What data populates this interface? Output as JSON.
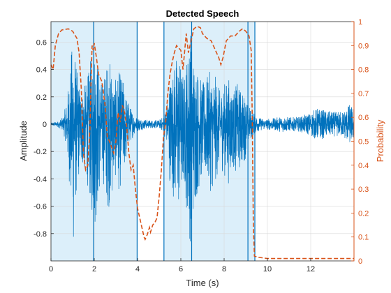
{
  "chart_data": {
    "type": "line",
    "title": "Detected Speech",
    "xlabel": "Time (s)",
    "ylabel_left": "Amplitude",
    "ylabel_right": "Probability",
    "xlim": [
      0,
      14
    ],
    "ylim_left": [
      -1,
      0.75
    ],
    "ylim_right": [
      0,
      1
    ],
    "x_ticks": [
      0,
      2,
      4,
      6,
      8,
      10,
      12
    ],
    "x_tick_labels": [
      "0",
      "2",
      "4",
      "6",
      "8",
      "10",
      "12"
    ],
    "y_left_ticks": [
      0.6,
      0.4,
      0.2,
      0,
      -0.2,
      -0.4,
      -0.6,
      -0.8
    ],
    "y_left_tick_labels": [
      "0.6",
      "0.4",
      "0.2",
      "0",
      "-0.2",
      "-0.4",
      "-0.6",
      "-0.8"
    ],
    "y_right_ticks": [
      0,
      0.1,
      0.2,
      0.3,
      0.4,
      0.5,
      0.6,
      0.7,
      0.8,
      0.9,
      1
    ],
    "y_right_tick_labels": [
      "0",
      "0.1",
      "0.2",
      "0.3",
      "0.4",
      "0.5",
      "0.6",
      "0.7",
      "0.8",
      "0.9",
      "1"
    ],
    "grid": true,
    "colors": {
      "waveform": "#0072BD",
      "probability": "#D95319",
      "region_fill": "#DCEFFA",
      "region_edge": "#0072BD"
    },
    "speech_regions": [
      [
        0,
        3.98
      ],
      [
        5.22,
        9.42
      ]
    ],
    "region_boundaries": [
      1.97,
      3.98,
      5.22,
      6.5,
      9.1,
      9.42
    ],
    "waveform_envelope": [
      [
        0,
        0.01
      ],
      [
        0.3,
        0.02
      ],
      [
        0.55,
        0.05
      ],
      [
        0.7,
        0.15
      ],
      [
        0.85,
        0.35
      ],
      [
        0.95,
        0.55
      ],
      [
        1.05,
        0.75
      ],
      [
        1.15,
        0.45
      ],
      [
        1.3,
        0.3
      ],
      [
        1.45,
        0.25
      ],
      [
        1.6,
        0.3
      ],
      [
        1.75,
        0.4
      ],
      [
        1.9,
        0.55
      ],
      [
        2.05,
        0.6
      ],
      [
        2.2,
        0.45
      ],
      [
        2.35,
        0.3
      ],
      [
        2.5,
        0.4
      ],
      [
        2.65,
        0.5
      ],
      [
        2.8,
        0.45
      ],
      [
        2.95,
        0.3
      ],
      [
        3.1,
        0.4
      ],
      [
        3.3,
        0.35
      ],
      [
        3.5,
        0.2
      ],
      [
        3.7,
        0.12
      ],
      [
        3.9,
        0.06
      ],
      [
        4.2,
        0.04
      ],
      [
        4.6,
        0.03
      ],
      [
        5.0,
        0.03
      ],
      [
        5.2,
        0.06
      ],
      [
        5.35,
        0.15
      ],
      [
        5.5,
        0.35
      ],
      [
        5.7,
        0.45
      ],
      [
        5.85,
        0.55
      ],
      [
        6.0,
        0.45
      ],
      [
        6.15,
        0.35
      ],
      [
        6.3,
        0.55
      ],
      [
        6.45,
        0.72
      ],
      [
        6.6,
        0.5
      ],
      [
        6.8,
        0.4
      ],
      [
        7.0,
        0.3
      ],
      [
        7.2,
        0.35
      ],
      [
        7.4,
        0.4
      ],
      [
        7.6,
        0.35
      ],
      [
        7.8,
        0.25
      ],
      [
        8.0,
        0.3
      ],
      [
        8.2,
        0.35
      ],
      [
        8.4,
        0.25
      ],
      [
        8.6,
        0.3
      ],
      [
        8.8,
        0.25
      ],
      [
        9.0,
        0.2
      ],
      [
        9.2,
        0.12
      ],
      [
        9.4,
        0.08
      ],
      [
        9.6,
        0.05
      ],
      [
        9.9,
        0.04
      ],
      [
        10.3,
        0.045
      ],
      [
        10.7,
        0.06
      ],
      [
        11.1,
        0.05
      ],
      [
        11.5,
        0.055
      ],
      [
        11.9,
        0.08
      ],
      [
        12.3,
        0.12
      ],
      [
        12.7,
        0.1
      ],
      [
        13.1,
        0.09
      ],
      [
        13.5,
        0.1
      ],
      [
        13.8,
        0.15
      ],
      [
        14.0,
        0.12
      ]
    ],
    "probability": [
      [
        0,
        0.82
      ],
      [
        0.1,
        0.8
      ],
      [
        0.2,
        0.9
      ],
      [
        0.35,
        0.95
      ],
      [
        0.5,
        0.965
      ],
      [
        0.8,
        0.97
      ],
      [
        1.0,
        0.96
      ],
      [
        1.2,
        0.93
      ],
      [
        1.3,
        0.87
      ],
      [
        1.4,
        0.72
      ],
      [
        1.5,
        0.45
      ],
      [
        1.6,
        0.38
      ],
      [
        1.7,
        0.4
      ],
      [
        1.8,
        0.55
      ],
      [
        1.85,
        0.75
      ],
      [
        1.9,
        0.9
      ],
      [
        1.95,
        0.88
      ],
      [
        2.0,
        0.91
      ],
      [
        2.1,
        0.85
      ],
      [
        2.2,
        0.78
      ],
      [
        2.35,
        0.75
      ],
      [
        2.5,
        0.65
      ],
      [
        2.6,
        0.52
      ],
      [
        2.7,
        0.5
      ],
      [
        2.9,
        0.45
      ],
      [
        3.0,
        0.5
      ],
      [
        3.1,
        0.62
      ],
      [
        3.2,
        0.58
      ],
      [
        3.3,
        0.65
      ],
      [
        3.4,
        0.62
      ],
      [
        3.5,
        0.56
      ],
      [
        3.6,
        0.45
      ],
      [
        3.7,
        0.38
      ],
      [
        3.8,
        0.4
      ],
      [
        3.9,
        0.3
      ],
      [
        4.0,
        0.22
      ],
      [
        4.1,
        0.18
      ],
      [
        4.2,
        0.14
      ],
      [
        4.3,
        0.1
      ],
      [
        4.35,
        0.09
      ],
      [
        4.45,
        0.11
      ],
      [
        4.55,
        0.14
      ],
      [
        4.6,
        0.12
      ],
      [
        4.7,
        0.15
      ],
      [
        4.8,
        0.16
      ],
      [
        4.9,
        0.18
      ],
      [
        5.0,
        0.27
      ],
      [
        5.1,
        0.38
      ],
      [
        5.2,
        0.52
      ],
      [
        5.3,
        0.58
      ],
      [
        5.4,
        0.7
      ],
      [
        5.5,
        0.78
      ],
      [
        5.6,
        0.83
      ],
      [
        5.7,
        0.87
      ],
      [
        5.8,
        0.9
      ],
      [
        5.9,
        0.89
      ],
      [
        6.0,
        0.88
      ],
      [
        6.1,
        0.8
      ],
      [
        6.15,
        0.85
      ],
      [
        6.25,
        0.95
      ],
      [
        6.35,
        0.87
      ],
      [
        6.5,
        0.93
      ],
      [
        6.6,
        0.97
      ],
      [
        6.75,
        0.98
      ],
      [
        6.9,
        0.975
      ],
      [
        7.0,
        0.95
      ],
      [
        7.2,
        0.93
      ],
      [
        7.4,
        0.92
      ],
      [
        7.6,
        0.88
      ],
      [
        7.75,
        0.85
      ],
      [
        7.85,
        0.82
      ],
      [
        7.95,
        0.85
      ],
      [
        8.1,
        0.92
      ],
      [
        8.3,
        0.94
      ],
      [
        8.5,
        0.94
      ],
      [
        8.7,
        0.96
      ],
      [
        8.85,
        0.97
      ],
      [
        9.0,
        0.96
      ],
      [
        9.15,
        0.94
      ],
      [
        9.25,
        0.88
      ],
      [
        9.3,
        0.6
      ],
      [
        9.35,
        0.15
      ],
      [
        9.4,
        0.02
      ],
      [
        9.6,
        0.015
      ],
      [
        10.0,
        0.01
      ],
      [
        11.0,
        0.01
      ],
      [
        12.0,
        0.01
      ],
      [
        13.0,
        0.01
      ],
      [
        14.0,
        0.01
      ]
    ]
  }
}
